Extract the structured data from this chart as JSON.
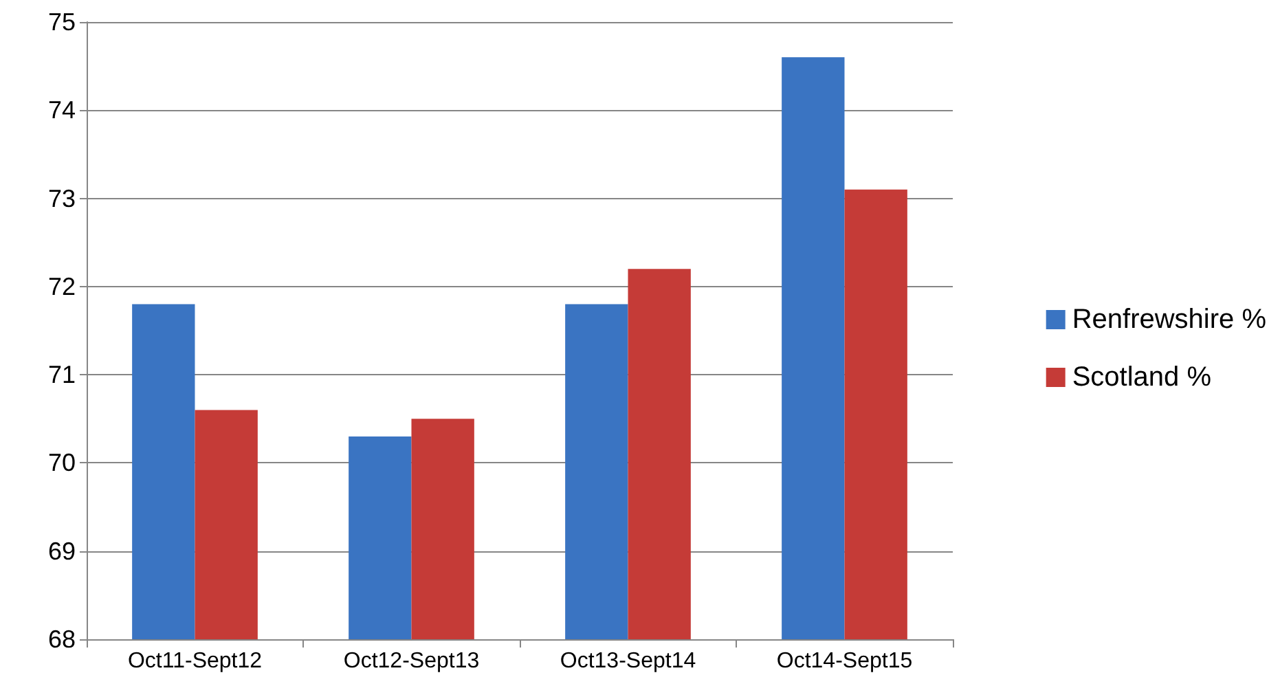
{
  "chart_data": {
    "type": "bar",
    "categories": [
      "Oct11-Sept12",
      "Oct12-Sept13",
      "Oct13-Sept14",
      "Oct14-Sept15"
    ],
    "series": [
      {
        "name": "Renfrewshire %",
        "color": "#3a74c2",
        "values": [
          71.8,
          70.3,
          71.8,
          74.6
        ]
      },
      {
        "name": "Scotland %",
        "color": "#c53b37",
        "values": [
          70.6,
          70.5,
          72.2,
          73.1
        ]
      }
    ],
    "ylim": [
      68,
      75
    ],
    "yticks": [
      68,
      69,
      70,
      71,
      72,
      73,
      74,
      75
    ],
    "grid": "y",
    "legend": "right"
  }
}
